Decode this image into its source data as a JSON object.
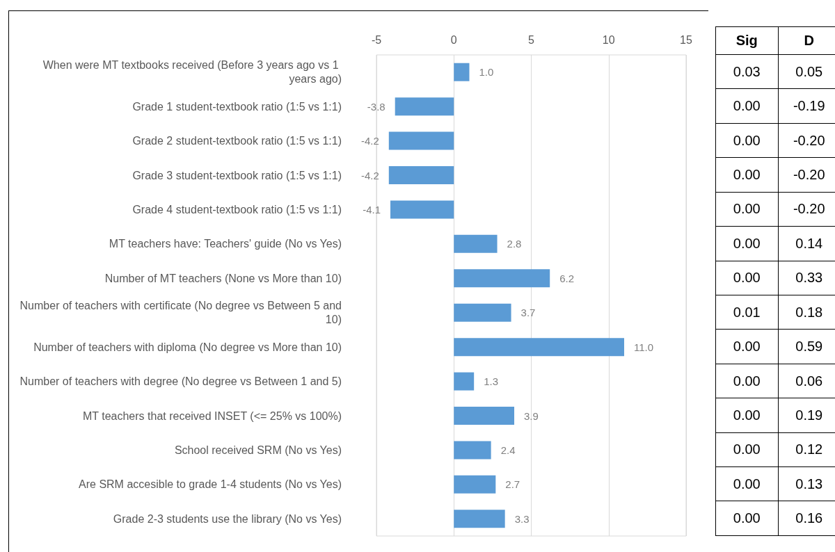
{
  "chart_data": [
    {
      "type": "bar",
      "orientation": "horizontal",
      "categories": [
        "When were MT textbooks received (Before 3 years ago vs 1 years ago)",
        "Grade 1 student-textbook ratio (1:5 vs 1:1)",
        "Grade 2 student-textbook ratio (1:5 vs 1:1)",
        "Grade 3 student-textbook ratio (1:5 vs 1:1)",
        "Grade 4 student-textbook ratio (1:5 vs 1:1)",
        "MT teachers have: Teachers' guide (No vs Yes)",
        "Number of MT teachers (None vs More than 10)",
        "Number of teachers with certificate (No degree vs Between 5 and 10)",
        "Number of teachers with diploma (No degree vs More than 10)",
        "Number of teachers with degree (No degree vs Between 1 and 5)",
        "MT teachers that received INSET (<= 25% vs 100%)",
        "School received SRM (No vs Yes)",
        "Are SRM accesible to grade 1-4 students (No vs Yes)",
        "Grade 2-3 students use the library (No vs Yes)"
      ],
      "values": [
        1.0,
        -3.8,
        -4.2,
        -4.2,
        -4.1,
        2.8,
        6.2,
        3.7,
        11.0,
        1.3,
        3.9,
        2.4,
        2.7,
        3.3
      ],
      "value_labels": [
        "1.0",
        "-3.8",
        "-4.2",
        "-4.2",
        "-4.1",
        "2.8",
        "6.2",
        "3.7",
        "11.0",
        "1.3",
        "3.9",
        "2.4",
        "2.7",
        "3.3"
      ],
      "color": "#5b9bd5",
      "xlim": [
        -5,
        15
      ],
      "xticks": [
        -5,
        0,
        5,
        10,
        15
      ],
      "grid": "x"
    },
    {
      "type": "other",
      "annotations": [
        "Sig",
        "D",
        "0.03",
        "0.05",
        "0.00",
        "-0.19",
        "0.00",
        "-0.20",
        "0.00",
        "-0.20",
        "0.00",
        "-0.20",
        "0.00",
        "0.14",
        "0.00",
        "0.33",
        "0.01",
        "0.18",
        "0.00",
        "0.59",
        "0.00",
        "0.06",
        "0.00",
        "0.19",
        "0.00",
        "0.12",
        "0.00",
        "0.13",
        "0.00",
        "0.16"
      ]
    }
  ]
}
